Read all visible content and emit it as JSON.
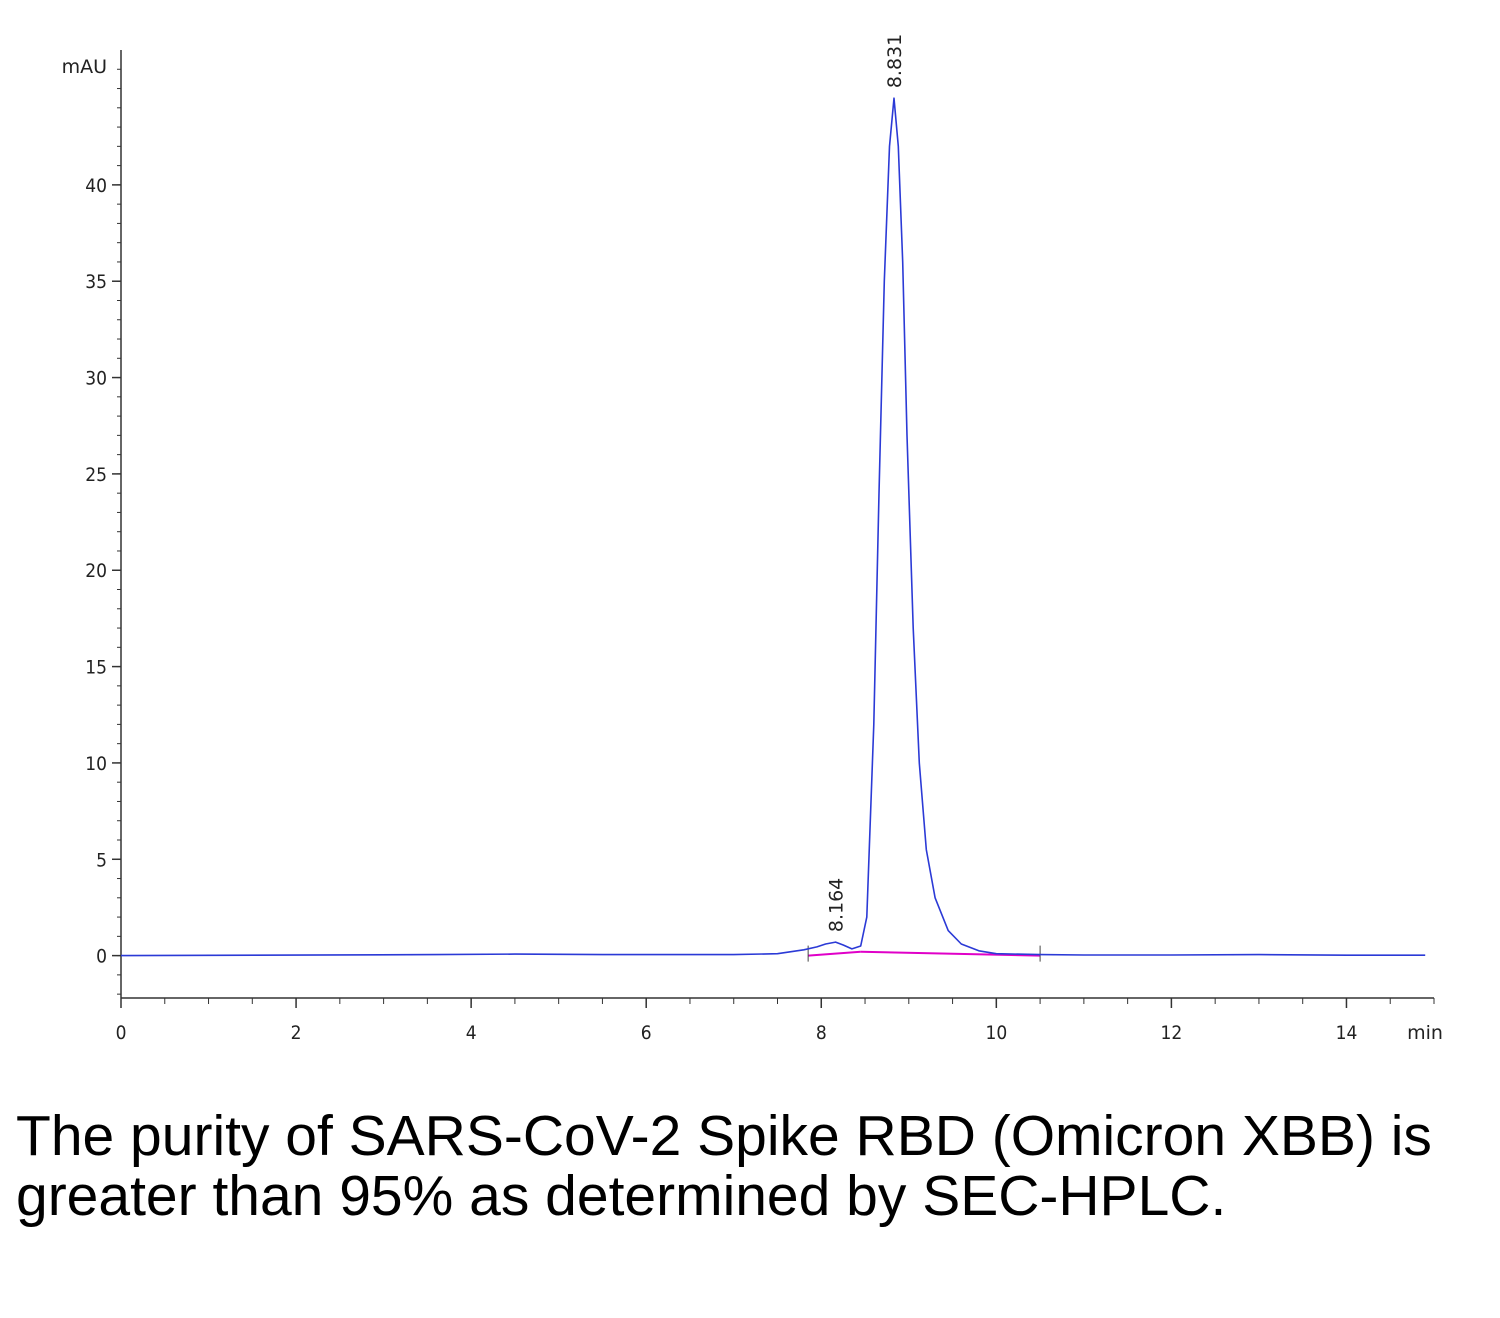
{
  "caption": "The purity of SARS-CoV-2 Spike RBD (Omicron XBB) is greater than 95% as determined by SEC-HPLC.",
  "colors": {
    "trace": "#2b3ad6",
    "baseline": "#e000c8",
    "axis": "#333333"
  },
  "chart_data": {
    "type": "line",
    "title": "",
    "x_unit": "min",
    "y_unit": "mAU",
    "xlim": [
      0,
      15
    ],
    "ylim": [
      -2.2,
      47
    ],
    "x_ticks": [
      0,
      2,
      4,
      6,
      8,
      10,
      12,
      14
    ],
    "y_ticks": [
      0,
      5,
      10,
      15,
      20,
      25,
      30,
      35,
      40
    ],
    "grid": false,
    "peaks": [
      {
        "label": "8.164",
        "x": 8.164,
        "y": 0.7
      },
      {
        "label": "8.831",
        "x": 8.831,
        "y": 44.5
      }
    ],
    "series": [
      {
        "x": [
          0,
          3.6,
          4.5,
          5.5,
          7.0,
          7.5,
          7.8,
          7.95,
          8.05,
          8.164,
          8.25,
          8.35,
          8.45,
          8.52,
          8.6,
          8.66,
          8.72,
          8.78,
          8.831,
          8.88,
          8.93,
          8.98,
          9.05,
          9.12,
          9.2,
          9.3,
          9.45,
          9.6,
          9.8,
          10.0,
          10.5,
          11.0,
          12.0,
          13.0,
          14.0,
          14.9
        ],
        "y": [
          0,
          0.05,
          0.08,
          0.05,
          0.05,
          0.1,
          0.3,
          0.45,
          0.6,
          0.7,
          0.55,
          0.35,
          0.5,
          2.0,
          12.0,
          24.0,
          35.0,
          42.0,
          44.5,
          42.0,
          36.0,
          27.0,
          17.0,
          10.0,
          5.5,
          3.0,
          1.3,
          0.6,
          0.25,
          0.1,
          0.05,
          0.03,
          0.03,
          0.05,
          0.02,
          0.02
        ]
      }
    ],
    "baselines": [
      {
        "x": [
          7.85,
          8.45
        ],
        "y": [
          0.0,
          0.2
        ]
      },
      {
        "x": [
          8.45,
          10.5
        ],
        "y": [
          0.2,
          0.0
        ]
      }
    ]
  }
}
